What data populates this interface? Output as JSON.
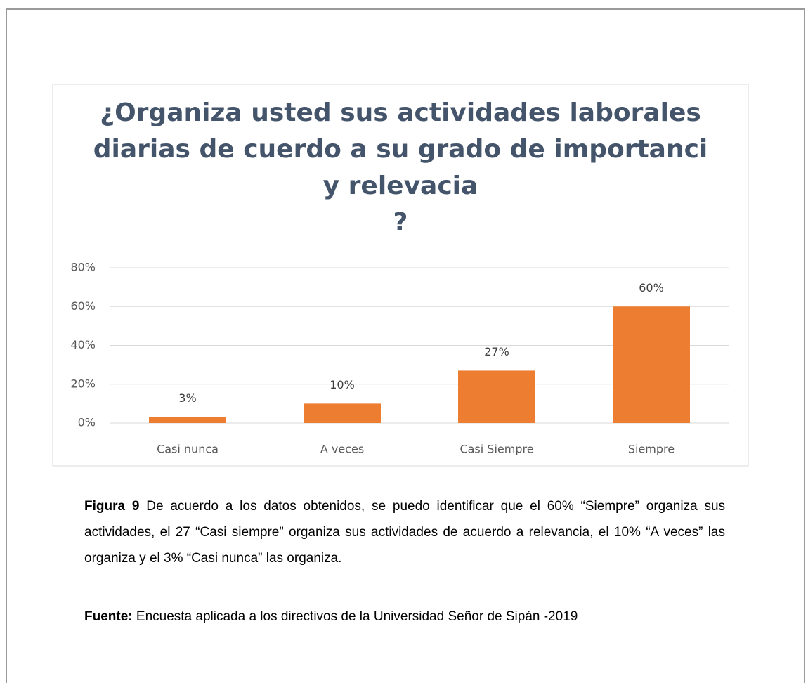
{
  "chart_data": {
    "type": "bar",
    "title": [
      "¿Organiza usted sus actividades laborales",
      "diarias de cuerdo a su grado de importanci",
      "y relevacia",
      "?"
    ],
    "categories": [
      "Casi nunca",
      "A veces",
      "Casi Siempre",
      "Siempre"
    ],
    "values": [
      3,
      10,
      27,
      60
    ],
    "value_labels": [
      "3%",
      "10%",
      "27%",
      "60%"
    ],
    "color": "#ed7d31",
    "ylim": [
      0,
      80
    ],
    "yticks": [
      {
        "value": 0,
        "label": "0%"
      },
      {
        "value": 20,
        "label": "20%"
      },
      {
        "value": 40,
        "label": "40%"
      },
      {
        "value": 60,
        "label": "60%"
      },
      {
        "value": 80,
        "label": "80%"
      }
    ],
    "grid": true
  },
  "caption": {
    "label": "Figura 9",
    "text": "De acuerdo a los datos obtenidos, se puedo identificar que el 60% “Siempre” organiza sus actividades, el 27 “Casi siempre” organiza sus actividades de acuerdo a relevancia, el 10% “A veces” las organiza y el 3% “Casi nunca” las organiza."
  },
  "source": {
    "label": "Fuente:",
    "text": "Encuesta aplicada a los directivos de la Universidad Señor de Sipán -2019"
  }
}
